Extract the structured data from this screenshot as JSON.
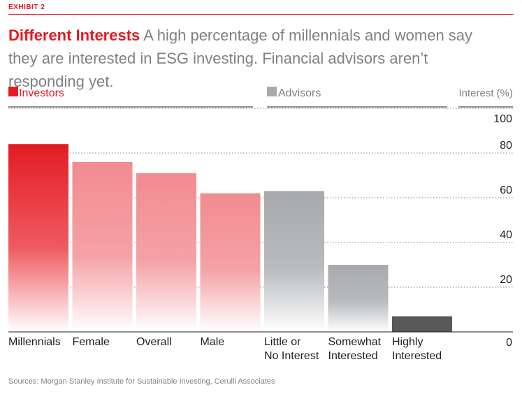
{
  "exhibit_label": "EXHIBIT 2",
  "headline": {
    "lead": "Different Interests",
    "text": "A high percentage of millennials and women say they are interested in ESG investing. Financial advisors aren’t responding yet."
  },
  "source": "Sources: Morgan Stanley Institute for Sustainable Investing, Cerulli Associates",
  "colors": {
    "accent": "#e31b23",
    "investors_light": "#f28b90",
    "advisors": "#a7a9ac",
    "advisors_dark": "#58595b"
  },
  "chart_data": {
    "type": "bar",
    "ylabel": "Interest (%)",
    "ylim": [
      0,
      100
    ],
    "yticks": [
      0,
      20,
      40,
      60,
      80,
      100
    ],
    "grid": "dotted horizontal, right side only",
    "legend": [
      {
        "name": "Investors",
        "color": "#e31b23"
      },
      {
        "name": "Advisors",
        "color": "#a7a9ac"
      }
    ],
    "legend_placement": "top",
    "categories": [
      [
        "Millennials"
      ],
      [
        "Female"
      ],
      [
        "Overall"
      ],
      [
        "Male"
      ],
      [
        "Little or",
        "No Interest"
      ],
      [
        "Somewhat",
        "Interested"
      ],
      [
        "Highly",
        "Interested"
      ]
    ],
    "values": [
      84,
      76,
      71,
      62,
      63,
      30,
      7
    ],
    "groups": [
      "Investors",
      "Investors",
      "Investors",
      "Investors",
      "Advisors",
      "Advisors",
      "Advisors"
    ]
  }
}
